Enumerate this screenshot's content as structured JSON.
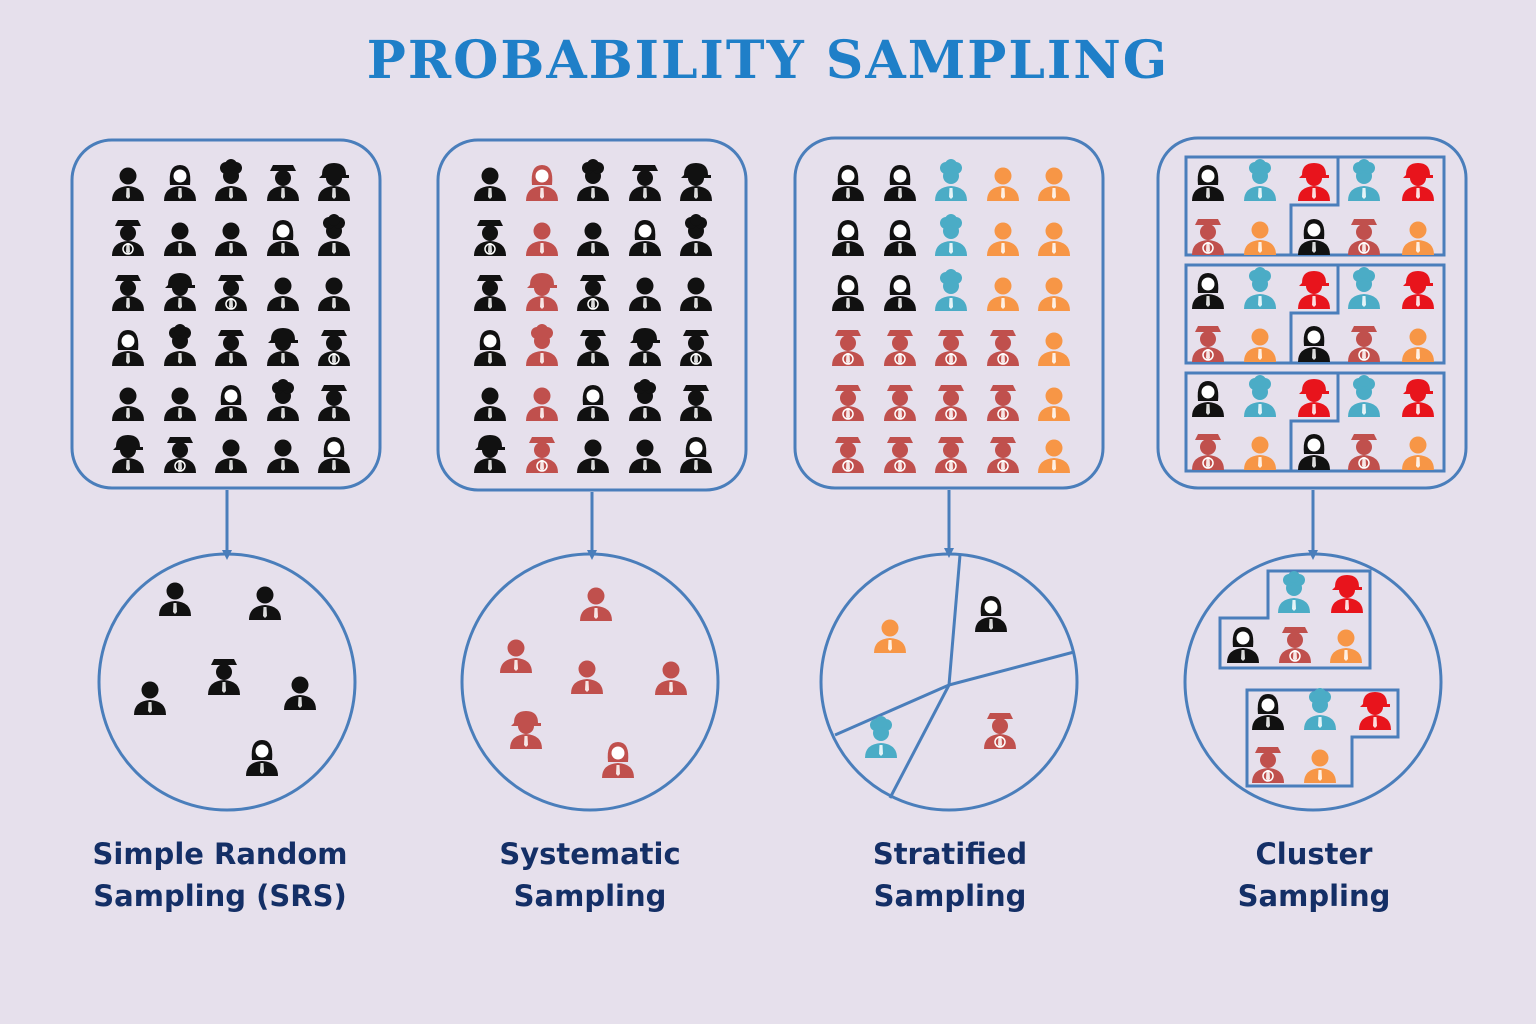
{
  "title": "PROBABILITY SAMPLING",
  "colors": {
    "background": "#e6e0ec",
    "title": "#1f7fc8",
    "outline": "#4a7ebb",
    "caption": "#142f66",
    "black": "#111111",
    "red_selected": "#c0504d",
    "teal": "#4bacc6",
    "orange": "#f79646",
    "fire_red": "#e8141c"
  },
  "methods": [
    {
      "id": "srs",
      "caption_line1": "Simple Random",
      "caption_line2": "Sampling (SRS)",
      "population_icons": 30,
      "sample_icons": 6
    },
    {
      "id": "systematic",
      "caption_line1": "Systematic",
      "caption_line2": "Sampling",
      "population_icons": 30,
      "sample_icons": 6
    },
    {
      "id": "stratified",
      "caption_line1": "Stratified",
      "caption_line2": "Sampling",
      "population_icons": 30,
      "sample_icons": 4
    },
    {
      "id": "cluster",
      "caption_line1": "Cluster",
      "caption_line2": "Sampling",
      "population_icons": 30,
      "sample_icons": 10
    }
  ],
  "icons": [
    "person-icon",
    "woman-icon",
    "chef-icon",
    "police-icon",
    "firefighter-icon",
    "captain-icon",
    "doctor-icon"
  ]
}
